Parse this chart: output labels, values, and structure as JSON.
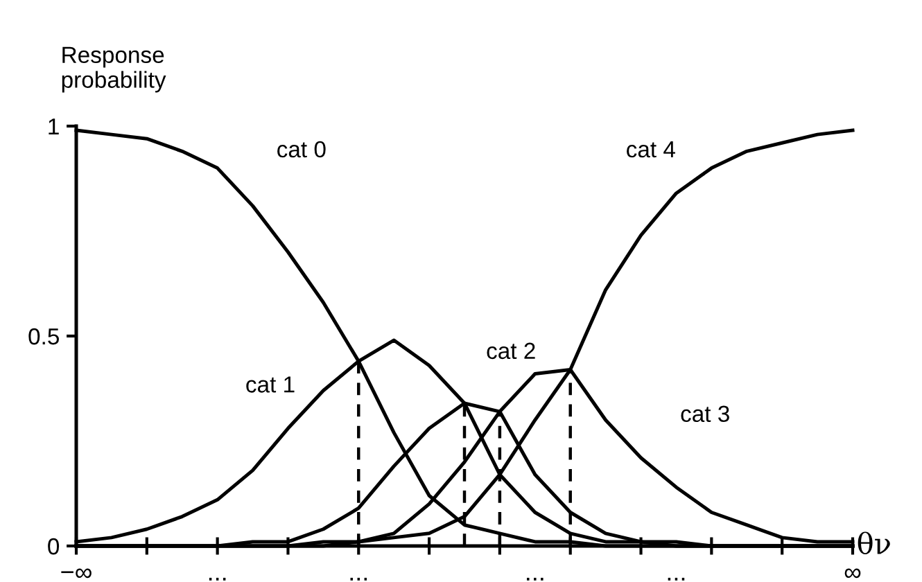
{
  "chart_data": {
    "type": "line",
    "ylabel": "Response\nprobability",
    "xlabel": "θν",
    "categories": [
      "−∞",
      null,
      null,
      null,
      "...",
      null,
      null,
      null,
      "...",
      null,
      null,
      null,
      null,
      "...",
      null,
      null,
      null,
      "...",
      null,
      null,
      null,
      null,
      "∞"
    ],
    "ylim": [
      0,
      1
    ],
    "yticks": [
      0,
      0.5,
      1
    ],
    "grid": false,
    "legend": false,
    "marker": "none",
    "line_style": "solid",
    "series": [
      {
        "color": "#000000",
        "values": [
          0.99,
          0.98,
          0.97,
          0.94,
          0.9,
          0.81,
          0.7,
          0.58,
          0.44,
          0.27,
          0.12,
          0.05,
          0.03,
          0.01,
          0.01,
          0,
          0,
          0,
          0,
          0,
          0,
          0,
          0
        ],
        "errors": [
          null,
          null,
          null,
          null,
          null,
          null,
          null,
          null,
          [
            0,
            0.44
          ],
          null,
          null,
          null,
          null,
          null,
          null,
          null,
          null,
          null,
          null,
          null,
          null,
          null,
          null
        ]
      },
      {
        "color": "#000000",
        "values": [
          0.01,
          0.02,
          0.04,
          0.07,
          0.11,
          0.18,
          0.28,
          0.37,
          0.44,
          0.49,
          0.43,
          0.34,
          0.17,
          0.08,
          0.03,
          0.01,
          0.01,
          0,
          0,
          0,
          0,
          0,
          0
        ],
        "errors": [
          null,
          null,
          null,
          null,
          null,
          null,
          null,
          null,
          null,
          null,
          null,
          [
            0,
            0.34
          ],
          null,
          null,
          null,
          null,
          null,
          null,
          null,
          null,
          null,
          null,
          null
        ]
      },
      {
        "color": "#000000",
        "values": [
          0,
          0,
          0,
          0,
          0,
          0.01,
          0.01,
          0.04,
          0.09,
          0.19,
          0.28,
          0.34,
          0.32,
          0.17,
          0.08,
          0.03,
          0.01,
          0.01,
          0,
          0,
          0,
          0,
          0
        ],
        "errors": [
          null,
          null,
          null,
          null,
          null,
          null,
          null,
          null,
          null,
          null,
          null,
          null,
          [
            0,
            0.32
          ],
          null,
          null,
          null,
          null,
          null,
          null,
          null,
          null,
          null,
          null
        ]
      },
      {
        "color": "#000000",
        "values": [
          0,
          0,
          0,
          0,
          0,
          0,
          0,
          0.01,
          0.01,
          0.03,
          0.1,
          0.2,
          0.32,
          0.41,
          0.42,
          0.3,
          0.21,
          0.14,
          0.08,
          0.05,
          0.02,
          0.01,
          0.01
        ],
        "errors": [
          null,
          null,
          null,
          null,
          null,
          null,
          null,
          null,
          null,
          null,
          null,
          null,
          null,
          null,
          [
            0,
            0.42
          ],
          null,
          null,
          null,
          null,
          null,
          null,
          null,
          null
        ]
      },
      {
        "color": "#000000",
        "values": [
          0,
          0,
          0,
          0,
          0,
          0,
          0,
          0,
          0.01,
          0.02,
          0.03,
          0.07,
          0.17,
          0.3,
          0.42,
          0.61,
          0.74,
          0.84,
          0.9,
          0.94,
          0.96,
          0.98,
          0.99
        ]
      }
    ],
    "annotations": [
      "cat 0",
      "cat 1",
      "cat 2",
      "cat 3",
      "cat 4"
    ]
  }
}
